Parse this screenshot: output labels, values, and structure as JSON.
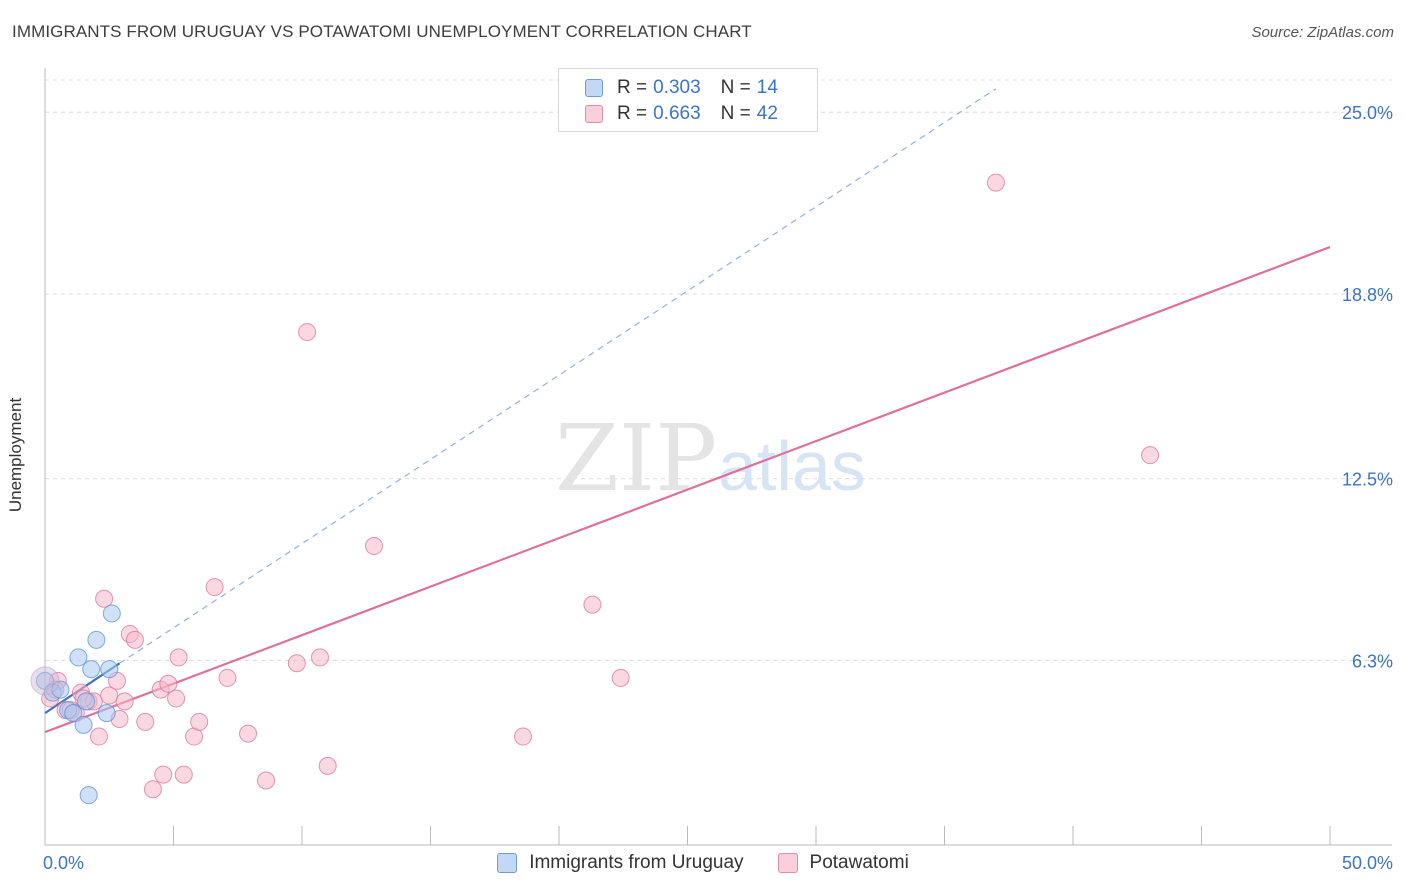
{
  "header": {
    "title": "IMMIGRANTS FROM URUGUAY VS POTAWATOMI UNEMPLOYMENT CORRELATION CHART",
    "source": "Source: ZipAtlas.com"
  },
  "watermark": {
    "zip": "ZIP",
    "atlas": "atlas"
  },
  "legend": {
    "rows": [
      {
        "r_label": "R =",
        "r_value": "0.303",
        "n_label": "N =",
        "n_value": "14",
        "color": "#aac8f0"
      },
      {
        "r_label": "R =",
        "r_value": "0.663",
        "n_label": "N =",
        "n_value": "42",
        "color": "#f5b8cb"
      }
    ]
  },
  "chart_data": {
    "type": "scatter",
    "title": "IMMIGRANTS FROM URUGUAY VS POTAWATOMI UNEMPLOYMENT CORRELATION CHART",
    "xlabel": "",
    "ylabel": "Unemployment",
    "xlim": [
      0,
      50
    ],
    "ylim": [
      0,
      26.1
    ],
    "x_tick_labels": [
      "0.0%",
      "50.0%"
    ],
    "y_ticks": [
      6.3,
      12.5,
      18.8,
      25.0
    ],
    "y_tick_labels": [
      "6.3%",
      "12.5%",
      "18.8%",
      "25.0%"
    ],
    "grid": "horizontal-dashed",
    "legend_placement": "bottom-center",
    "series": [
      {
        "name": "Immigrants from Uruguay",
        "color": "#5a8fd6",
        "fill": "#aac8f0",
        "points": [
          [
            0.0,
            5.6
          ],
          [
            0.3,
            5.2
          ],
          [
            0.6,
            5.3
          ],
          [
            0.9,
            4.6
          ],
          [
            1.1,
            4.5
          ],
          [
            1.3,
            6.4
          ],
          [
            1.5,
            4.1
          ],
          [
            1.6,
            4.9
          ],
          [
            1.8,
            6.0
          ],
          [
            2.0,
            7.0
          ],
          [
            2.4,
            4.5
          ],
          [
            2.5,
            6.0
          ],
          [
            2.6,
            7.9
          ],
          [
            1.7,
            1.7
          ]
        ],
        "trend": {
          "x": [
            0.0,
            2.9
          ],
          "y": [
            4.5,
            6.2
          ],
          "dashed_x": [
            2.9,
            37.0
          ],
          "dashed_y": [
            6.2,
            25.8
          ]
        }
      },
      {
        "name": "Potawatomi",
        "color": "#e0709a",
        "fill": "#f5b8cb",
        "points": [
          [
            0.2,
            5.0
          ],
          [
            0.5,
            5.6
          ],
          [
            0.8,
            4.6
          ],
          [
            1.2,
            4.5
          ],
          [
            1.4,
            5.2
          ],
          [
            1.7,
            4.9
          ],
          [
            1.9,
            4.9
          ],
          [
            2.1,
            3.7
          ],
          [
            2.3,
            8.4
          ],
          [
            2.5,
            5.1
          ],
          [
            2.8,
            5.6
          ],
          [
            2.9,
            4.3
          ],
          [
            3.1,
            4.9
          ],
          [
            3.3,
            7.2
          ],
          [
            3.5,
            7.0
          ],
          [
            3.9,
            4.2
          ],
          [
            4.2,
            1.9
          ],
          [
            4.5,
            5.3
          ],
          [
            4.6,
            2.4
          ],
          [
            4.8,
            5.5
          ],
          [
            5.1,
            5.0
          ],
          [
            5.2,
            6.4
          ],
          [
            5.4,
            2.4
          ],
          [
            5.8,
            3.7
          ],
          [
            6.0,
            4.2
          ],
          [
            6.6,
            8.8
          ],
          [
            7.1,
            5.7
          ],
          [
            7.9,
            3.8
          ],
          [
            8.6,
            2.2
          ],
          [
            9.8,
            6.2
          ],
          [
            10.2,
            17.5
          ],
          [
            10.7,
            6.4
          ],
          [
            11.0,
            2.7
          ],
          [
            12.8,
            10.2
          ],
          [
            18.6,
            3.7
          ],
          [
            21.3,
            8.2
          ],
          [
            22.4,
            5.7
          ],
          [
            37.0,
            22.6
          ],
          [
            43.0,
            13.3
          ],
          [
            0.4,
            5.3
          ],
          [
            1.0,
            4.6
          ],
          [
            1.5,
            5.0
          ]
        ],
        "trend": {
          "x": [
            0.0,
            50.0
          ],
          "y": [
            3.85,
            20.4
          ]
        }
      }
    ]
  }
}
